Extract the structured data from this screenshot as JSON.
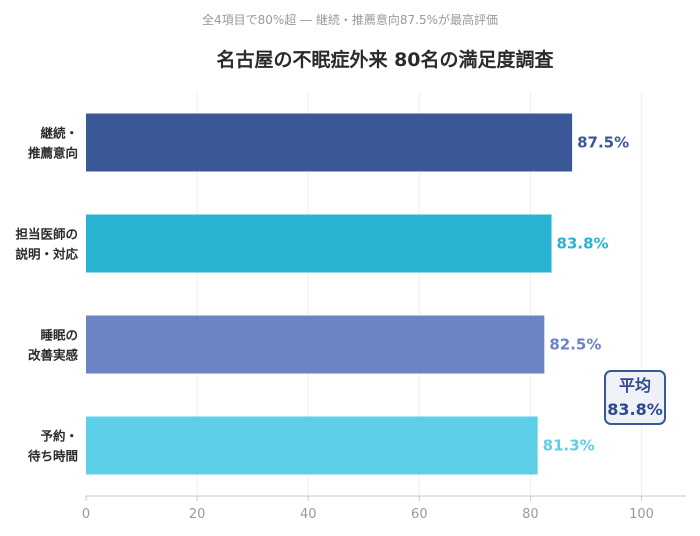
{
  "chart_data": {
    "type": "bar",
    "orientation": "horizontal",
    "subtitle": "全4項目で80%超 ― 継続・推薦意向87.5%が最高評価",
    "title": "名古屋の不眠症外来 80名の満足度調査",
    "categories": [
      [
        "継続・",
        "推薦意向"
      ],
      [
        "担当医師の",
        "説明・対応"
      ],
      [
        "睡眠の",
        "改善実感"
      ],
      [
        "予約・",
        "待ち時間"
      ]
    ],
    "values": [
      87.5,
      83.8,
      82.5,
      81.3
    ],
    "value_labels": [
      "87.5%",
      "83.8%",
      "82.5%",
      "81.3%"
    ],
    "colors": [
      "#3a5898",
      "#29b3d3",
      "#6b84c5",
      "#5ecfe8"
    ],
    "xlim": [
      0,
      108
    ],
    "x_ticks": [
      0,
      20,
      40,
      60,
      80,
      100
    ],
    "grid": true,
    "legend": "none",
    "annotation": {
      "line1": "平均",
      "line2": "83.8%",
      "text_color": "#2e4a8a",
      "border_color": "#3a5898",
      "fill_color": "#eef1f8"
    }
  }
}
